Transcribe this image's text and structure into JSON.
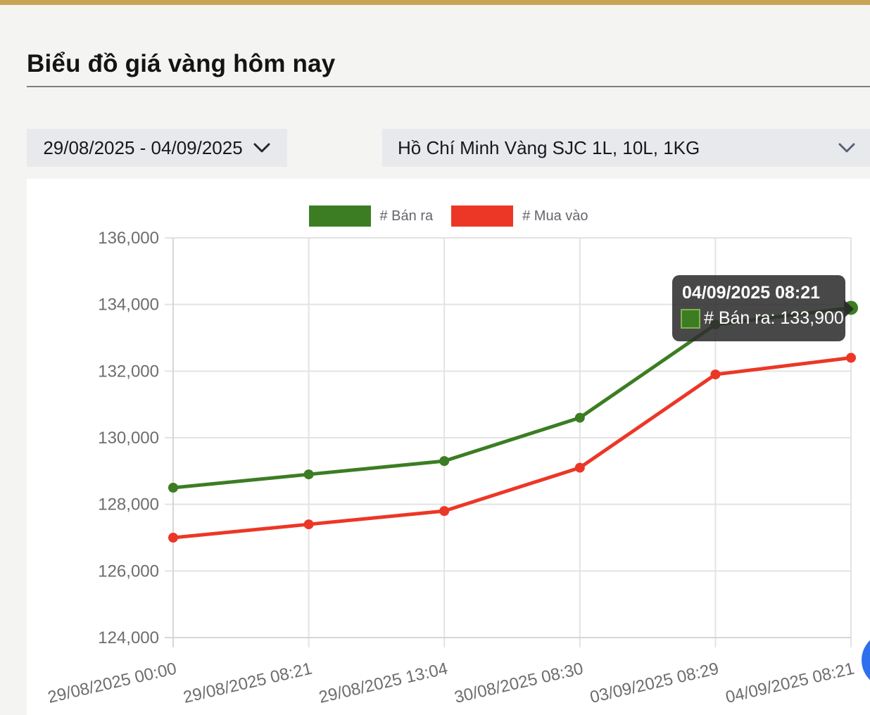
{
  "page": {
    "title": "Biểu đồ giá vàng hôm nay",
    "top_bar_color": "#c9a355"
  },
  "filters": {
    "date_range": "29/08/2025 - 04/09/2025",
    "product": "Hồ Chí Minh Vàng SJC 1L, 10L, 1KG"
  },
  "chart_data": {
    "type": "line",
    "x": [
      "29/08/2025 00:00",
      "29/08/2025 08:21",
      "29/08/2025 13:04",
      "30/08/2025 08:30",
      "03/09/2025 08:29",
      "04/09/2025 08:21"
    ],
    "series": [
      {
        "name": "# Bán ra",
        "color": "#3c7d23",
        "values": [
          128500,
          128900,
          129300,
          130600,
          133400,
          133900
        ]
      },
      {
        "name": "# Mua vào",
        "color": "#ec3726",
        "values": [
          127000,
          127400,
          127800,
          129100,
          131900,
          132400
        ]
      }
    ],
    "ylim": [
      124000,
      136000
    ],
    "ytick_step": 2000,
    "grid": true,
    "legend_position": "top",
    "xlabel": "",
    "ylabel": ""
  },
  "tooltip": {
    "title": "04/09/2025 08:21",
    "label": "# Bán ra: 133,900",
    "series": "# Bán ra",
    "value": 133900
  },
  "colors": {
    "grid": "#e3e3e3",
    "axis": "#d6d6d6",
    "tick_text": "#6d6d6d",
    "fab": "#2e6ff0"
  }
}
